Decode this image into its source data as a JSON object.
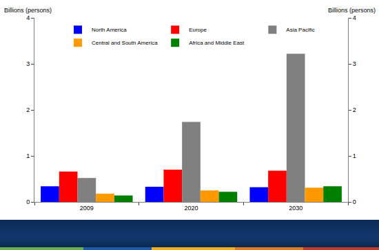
{
  "chart_data": {
    "type": "bar",
    "y_label": "Billions (persons)",
    "y2_label": "Billions (persons)",
    "categories": [
      "2009",
      "2020",
      "2030"
    ],
    "series": [
      {
        "name": "North America",
        "color": "#0000ff",
        "values": [
          0.34,
          0.33,
          0.32
        ]
      },
      {
        "name": "Europe",
        "color": "#ff0000",
        "values": [
          0.66,
          0.7,
          0.68
        ]
      },
      {
        "name": "Asia Pacific",
        "color": "#808080",
        "values": [
          0.52,
          1.74,
          3.22
        ]
      },
      {
        "name": "Central and South America",
        "color": "#ff9900",
        "values": [
          0.18,
          0.25,
          0.31
        ]
      },
      {
        "name": "Africa and Middle East",
        "color": "#008000",
        "values": [
          0.14,
          0.22,
          0.34
        ]
      }
    ],
    "ylim": [
      0,
      4
    ],
    "yticks": [
      0,
      1,
      2,
      3,
      4
    ],
    "y2lim": [
      0,
      4
    ],
    "y2ticks": [
      0,
      1,
      2,
      3,
      4
    ],
    "grid": false,
    "legend": "top"
  }
}
